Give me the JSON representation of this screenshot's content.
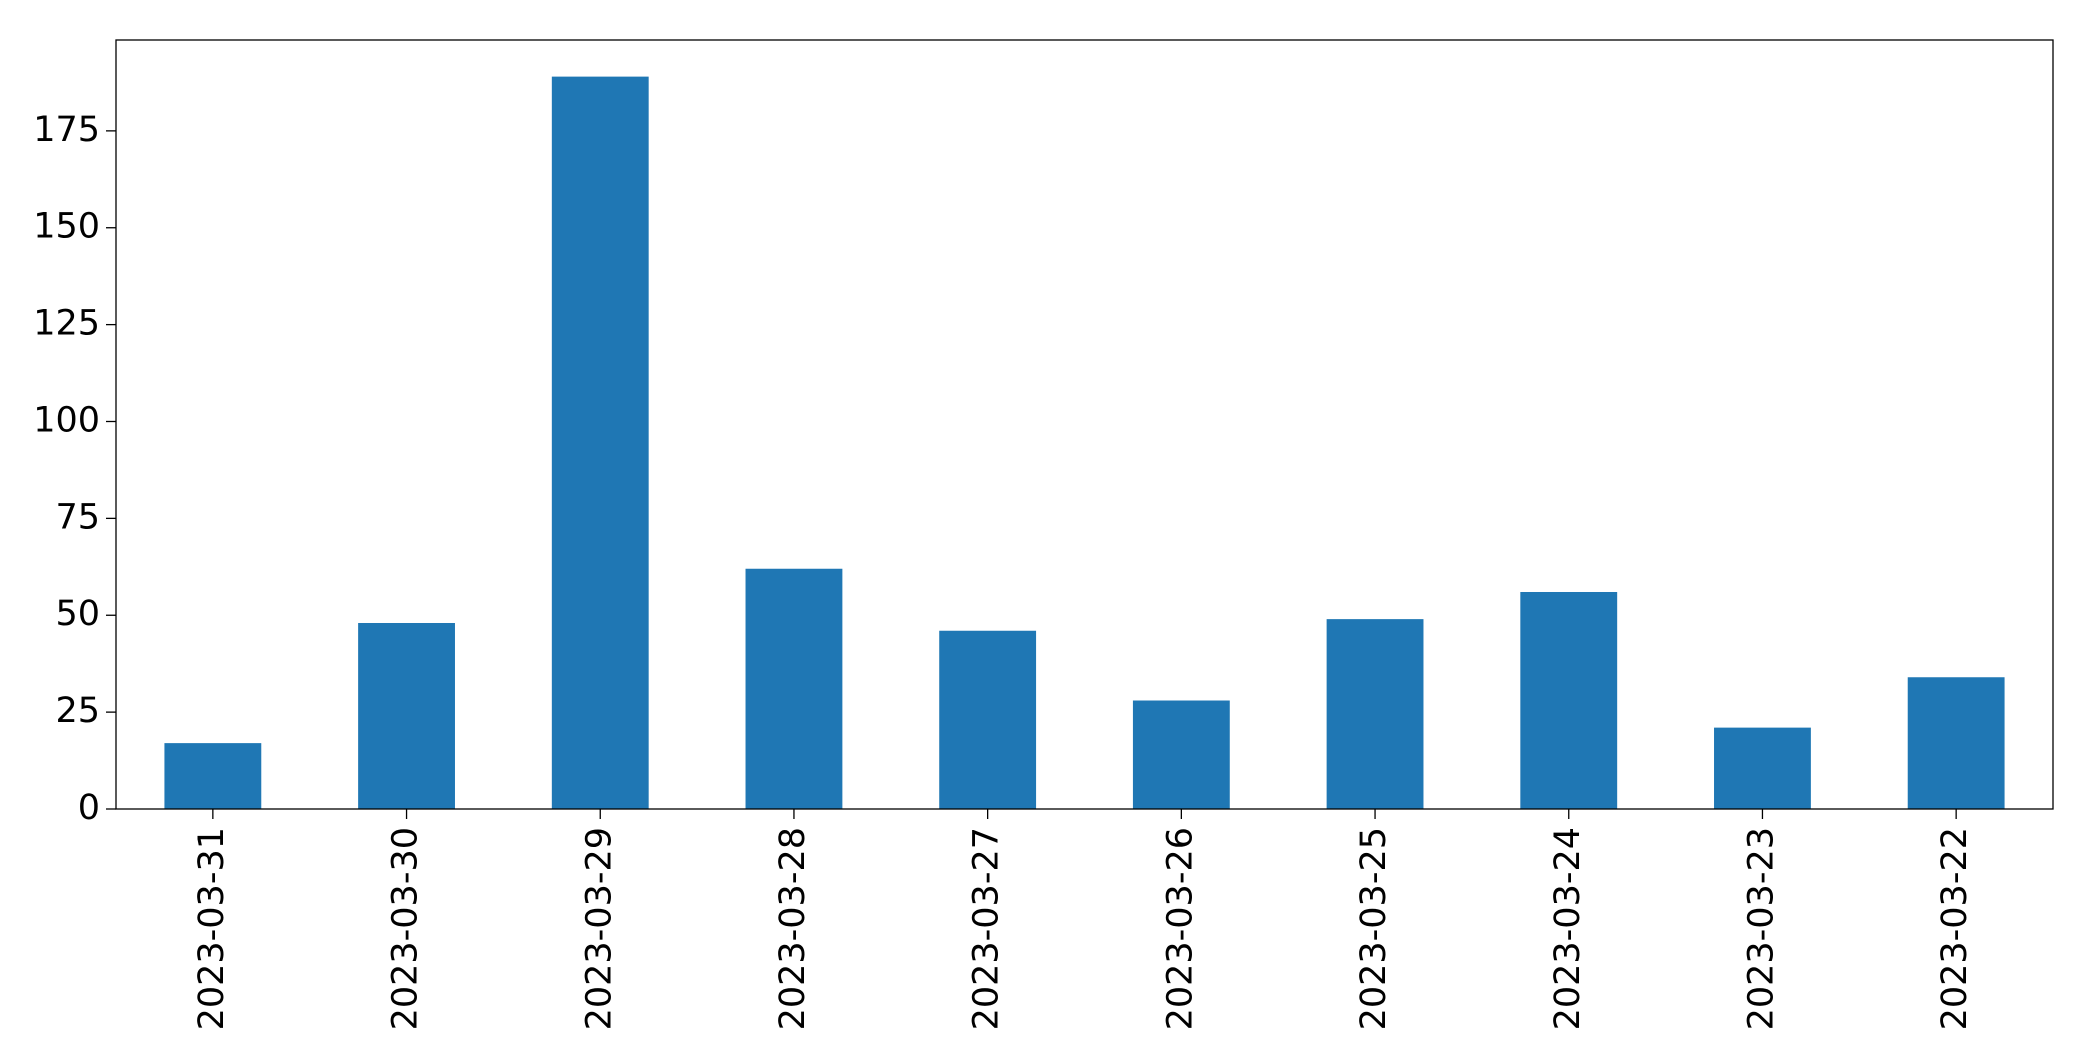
{
  "chart_data": {
    "type": "bar",
    "categories": [
      "2023-03-31",
      "2023-03-30",
      "2023-03-29",
      "2023-03-28",
      "2023-03-27",
      "2023-03-26",
      "2023-03-25",
      "2023-03-24",
      "2023-03-23",
      "2023-03-22"
    ],
    "values": [
      17,
      48,
      189,
      62,
      46,
      28,
      49,
      56,
      21,
      34
    ],
    "color": "#1f77b4",
    "ylim": [
      0,
      198.45
    ],
    "yticks": [
      0,
      25,
      50,
      75,
      100,
      125,
      150,
      175
    ],
    "grid": false
  }
}
